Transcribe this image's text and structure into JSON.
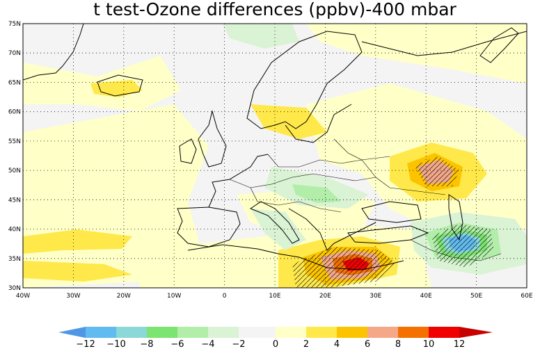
{
  "chart_data": {
    "type": "heatmap",
    "title": "t test-Ozone differences (ppbv)-400 mbar",
    "variable": "Ozone differences (ppbv)",
    "pressure_level": "400 mbar",
    "lon_range": [
      -40,
      60
    ],
    "lat_range": [
      30,
      75
    ],
    "x_ticks": [
      "40W",
      "30W",
      "20W",
      "10W",
      "0",
      "10E",
      "20E",
      "30E",
      "40E",
      "50E",
      "60E"
    ],
    "y_ticks": [
      "30N",
      "35N",
      "40N",
      "45N",
      "50N",
      "55N",
      "60N",
      "65N",
      "70N",
      "75N"
    ],
    "grid": "dotted",
    "colorbar": {
      "levels": [
        -12,
        -10,
        -8,
        -6,
        -4,
        -2,
        0,
        2,
        4,
        6,
        8,
        10,
        12
      ],
      "labels": [
        "−12",
        "−10",
        "−8",
        "−6",
        "−4",
        "−2",
        "0",
        "2",
        "4",
        "6",
        "8",
        "10",
        "12"
      ],
      "colors": [
        "#4f96e4",
        "#5fbbf0",
        "#8ad8d8",
        "#7ce470",
        "#b2eeaa",
        "#daf3d4",
        "#f4f4f4",
        "#ffffc8",
        "#ffe84a",
        "#fcc400",
        "#f4a888",
        "#f47000",
        "#f00000",
        "#c80000"
      ]
    },
    "anomaly_regions": [
      {
        "lon": 26,
        "lat": 35,
        "value": 10,
        "significant": true
      },
      {
        "lon": 47,
        "lat": 38.5,
        "value": -10,
        "significant": true
      },
      {
        "lon": 42,
        "lat": 49.5,
        "value": 6,
        "significant": true
      },
      {
        "lon": 7,
        "lat": 35,
        "value": 4,
        "significant": false
      },
      {
        "lon": 20,
        "lat": 46,
        "value": -4,
        "significant": false
      }
    ]
  }
}
